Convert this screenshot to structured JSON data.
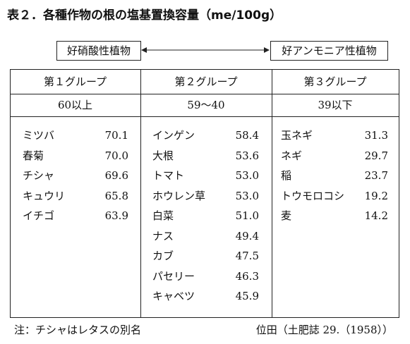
{
  "header": {
    "title": "表２．各種作物の根の塩基置換容量（me/100g）"
  },
  "arrow": {
    "left": "好硝酸性植物",
    "right": "好アンモニア性植物"
  },
  "table": {
    "groups": [
      {
        "header": "第１グループ",
        "range": "60以上",
        "items": [
          {
            "name": "ミツバ",
            "value": "70.1"
          },
          {
            "name": "春菊",
            "value": "70.0"
          },
          {
            "name": "チシャ",
            "value": "69.6"
          },
          {
            "name": "キュウリ",
            "value": "65.8"
          },
          {
            "name": "イチゴ",
            "value": "63.9"
          }
        ]
      },
      {
        "header": "第２グループ",
        "range": "59～40",
        "items": [
          {
            "name": "インゲン",
            "value": "58.4"
          },
          {
            "name": "大根",
            "value": "53.6"
          },
          {
            "name": "トマト",
            "value": "53.0"
          },
          {
            "name": "ホウレン草",
            "value": "53.0"
          },
          {
            "name": "白菜",
            "value": "51.0"
          },
          {
            "name": "ナス",
            "value": "49.4"
          },
          {
            "name": "カブ",
            "value": "47.5"
          },
          {
            "name": "パセリー",
            "value": "46.3"
          },
          {
            "name": "キャベツ",
            "value": "45.9"
          }
        ]
      },
      {
        "header": "第３グループ",
        "range": "39以下",
        "items": [
          {
            "name": "玉ネギ",
            "value": "31.3"
          },
          {
            "name": "ネギ",
            "value": "29.7"
          },
          {
            "name": "稲",
            "value": "23.7"
          },
          {
            "name": "トウモロコシ",
            "value": "19.2"
          },
          {
            "name": "麦",
            "value": "14.2"
          }
        ]
      }
    ]
  },
  "footer": {
    "note": "注：チシャはレタスの別名",
    "source": "位田（土肥誌 29.（1958））"
  }
}
